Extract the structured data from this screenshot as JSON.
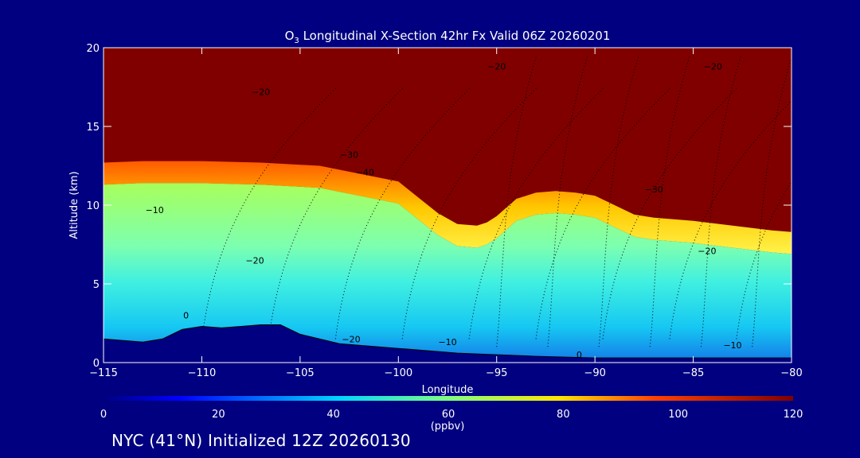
{
  "chart_data": {
    "type": "heatmap",
    "title_prefix": "O",
    "title_sub": "3",
    "title_rest": " Longitudinal X-Section 42hr  Fx Valid 06Z 20260201",
    "xlabel": "Longitude",
    "ylabel": "Altitude (km)",
    "xlim": [
      -115,
      -80
    ],
    "ylim": [
      0,
      20
    ],
    "xticks": [
      -115,
      -110,
      -105,
      -100,
      -95,
      -90,
      -85,
      -80
    ],
    "xtick_labels": [
      "−115",
      "−110",
      "−105",
      "−100",
      "−95",
      "−90",
      "−85",
      "−80"
    ],
    "yticks": [
      0,
      5,
      10,
      15,
      20
    ],
    "ytick_labels": [
      "0",
      "5",
      "10",
      "15",
      "20"
    ],
    "colorbar": {
      "range": [
        0,
        120
      ],
      "ticks": [
        0,
        20,
        40,
        60,
        80,
        100,
        120
      ],
      "tick_labels": [
        "0",
        "20",
        "40",
        "60",
        "80",
        "100",
        "120"
      ],
      "unit": "(ppbv)"
    },
    "stratosphere_boundary_km": {
      "lon": [
        -115,
        -113,
        -110,
        -107,
        -104,
        -102,
        -100,
        -99,
        -98,
        -97,
        -96,
        -95.5,
        -95,
        -94,
        -93,
        -92,
        -91,
        -90,
        -89,
        -88,
        -87,
        -85,
        -83,
        -81,
        -80
      ],
      "alt": [
        12.7,
        12.8,
        12.8,
        12.7,
        12.5,
        12.0,
        11.5,
        10.5,
        9.5,
        8.8,
        8.7,
        8.9,
        9.3,
        10.4,
        10.8,
        10.9,
        10.8,
        10.6,
        10.0,
        9.4,
        9.2,
        9.0,
        8.7,
        8.4,
        8.3
      ]
    },
    "terrain_km": {
      "lon": [
        -115,
        -114,
        -113,
        -112,
        -111,
        -110,
        -109,
        -108,
        -107,
        -106,
        -105,
        -103,
        -100,
        -97,
        -95,
        -93,
        -90,
        -88,
        -85,
        -82,
        -80
      ],
      "alt": [
        1.5,
        1.4,
        1.3,
        1.5,
        2.1,
        2.3,
        2.2,
        2.3,
        2.4,
        2.4,
        1.8,
        1.2,
        0.9,
        0.6,
        0.5,
        0.4,
        0.3,
        0.3,
        0.3,
        0.3,
        0.3
      ]
    },
    "annotations": {
      "ozone_contours": [
        {
          "label": "−10",
          "lon": -112.4,
          "alt": 9.5
        },
        {
          "label": "−20",
          "lon": -107.3,
          "alt": 6.3
        },
        {
          "label": "−20",
          "lon": -102.4,
          "alt": 1.3
        },
        {
          "label": "−10",
          "lon": -97.5,
          "alt": 1.1
        },
        {
          "label": "−20",
          "lon": -107.0,
          "alt": 17.0
        },
        {
          "label": "−20",
          "lon": -95.0,
          "alt": 18.6
        },
        {
          "label": "−30",
          "lon": -102.5,
          "alt": 13.0
        },
        {
          "label": "−40",
          "lon": -101.7,
          "alt": 11.9
        },
        {
          "label": "−30",
          "lon": -87.0,
          "alt": 10.8
        },
        {
          "label": "−20",
          "lon": -84.3,
          "alt": 6.9
        },
        {
          "label": "−10",
          "lon": -83.0,
          "alt": 0.9
        },
        {
          "label": "−20",
          "lon": -84.0,
          "alt": 18.6
        },
        {
          "label": "0",
          "lon": -110.8,
          "alt": 2.8
        },
        {
          "label": "0",
          "lon": -90.8,
          "alt": 0.3
        }
      ]
    }
  },
  "footer": "NYC (41°N) Initialized 12Z 20260130"
}
